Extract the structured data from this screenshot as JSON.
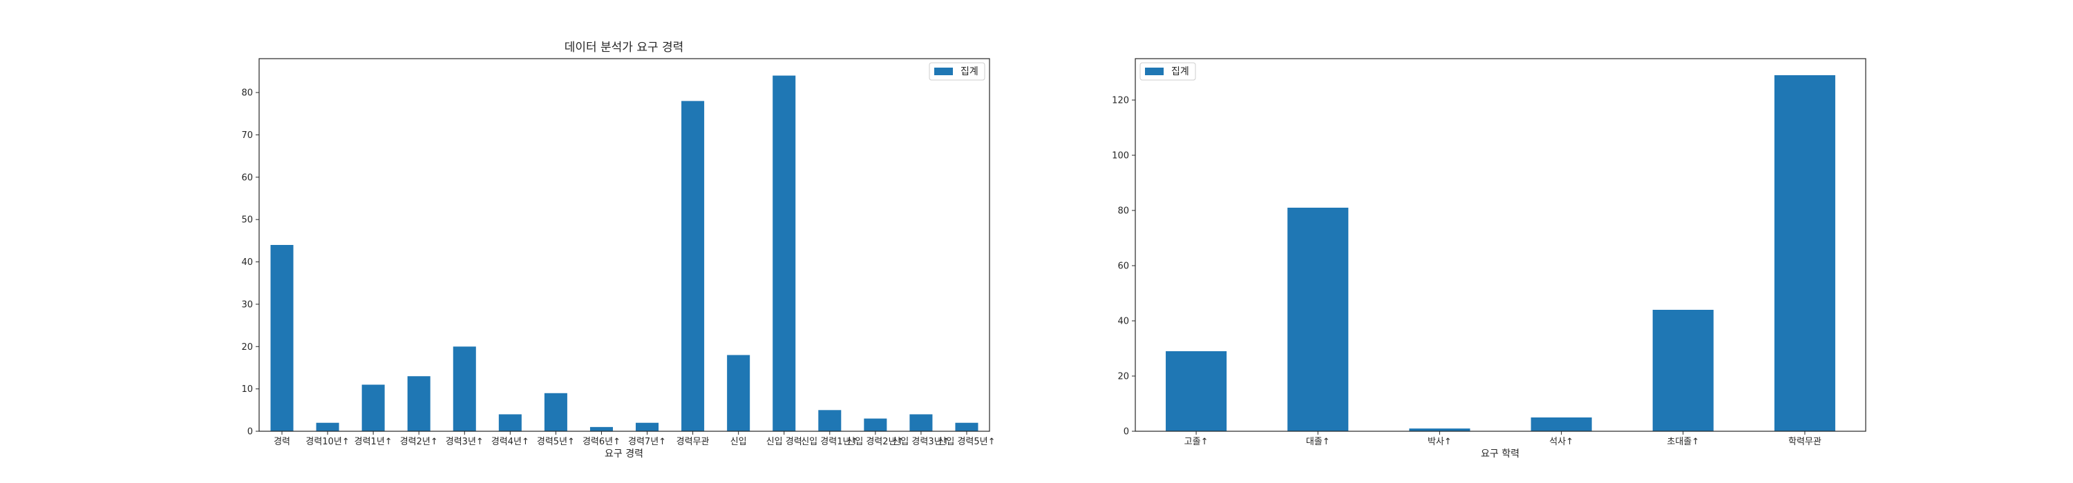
{
  "chart_data": [
    {
      "type": "bar",
      "title": "데이터 분석가 요구 경력",
      "xlabel": "요구 경력",
      "ylabel": "",
      "categories": [
        "경력",
        "경력10년↑",
        "경력1년↑",
        "경력2년↑",
        "경력3년↑",
        "경력4년↑",
        "경력5년↑",
        "경력6년↑",
        "경력7년↑",
        "경력무관",
        "신입",
        "신입·경력",
        "신입·경력1년↑",
        "신입·경력2년↑",
        "신입·경력3년↑",
        "신입·경력5년↑"
      ],
      "tick_labels": [
        "경력",
        "경력10년↑",
        "경력1년↑",
        "경력2년↑",
        "경력3년↑",
        "경력4년↑",
        "경력5년↑",
        "경력6년↑",
        "경력7년↑",
        "경력무관",
        "신입",
        "신입 경력",
        "신입 경력1년↑",
        "신입 경력2년↑",
        "신입 경력3년↑",
        "신입 경력5년↑"
      ],
      "series": [
        {
          "name": "집계",
          "values": [
            44,
            2,
            11,
            13,
            20,
            4,
            9,
            1,
            2,
            78,
            18,
            84,
            5,
            3,
            4,
            2
          ]
        }
      ],
      "ylim": [
        0,
        88
      ],
      "yticks": [
        0,
        10,
        20,
        30,
        40,
        50,
        60,
        70,
        80
      ],
      "legend": "top-right",
      "grid": false
    },
    {
      "type": "bar",
      "title": "",
      "xlabel": "요구 학력",
      "ylabel": "",
      "categories": [
        "고졸↑",
        "대졸↑",
        "박사↑",
        "석사↑",
        "초대졸↑",
        "학력무관"
      ],
      "tick_labels": [
        "고졸↑",
        "대졸↑",
        "박사↑",
        "석사↑",
        "초대졸↑",
        "학력무관"
      ],
      "series": [
        {
          "name": "집계",
          "values": [
            29,
            81,
            1,
            5,
            44,
            129
          ]
        }
      ],
      "ylim": [
        0,
        135
      ],
      "yticks": [
        0,
        20,
        40,
        60,
        80,
        100,
        120
      ],
      "legend": "top-left",
      "grid": false
    }
  ],
  "colors": {
    "bar": "#1f77b4",
    "axis": "#262626",
    "background": "#ffffff"
  }
}
